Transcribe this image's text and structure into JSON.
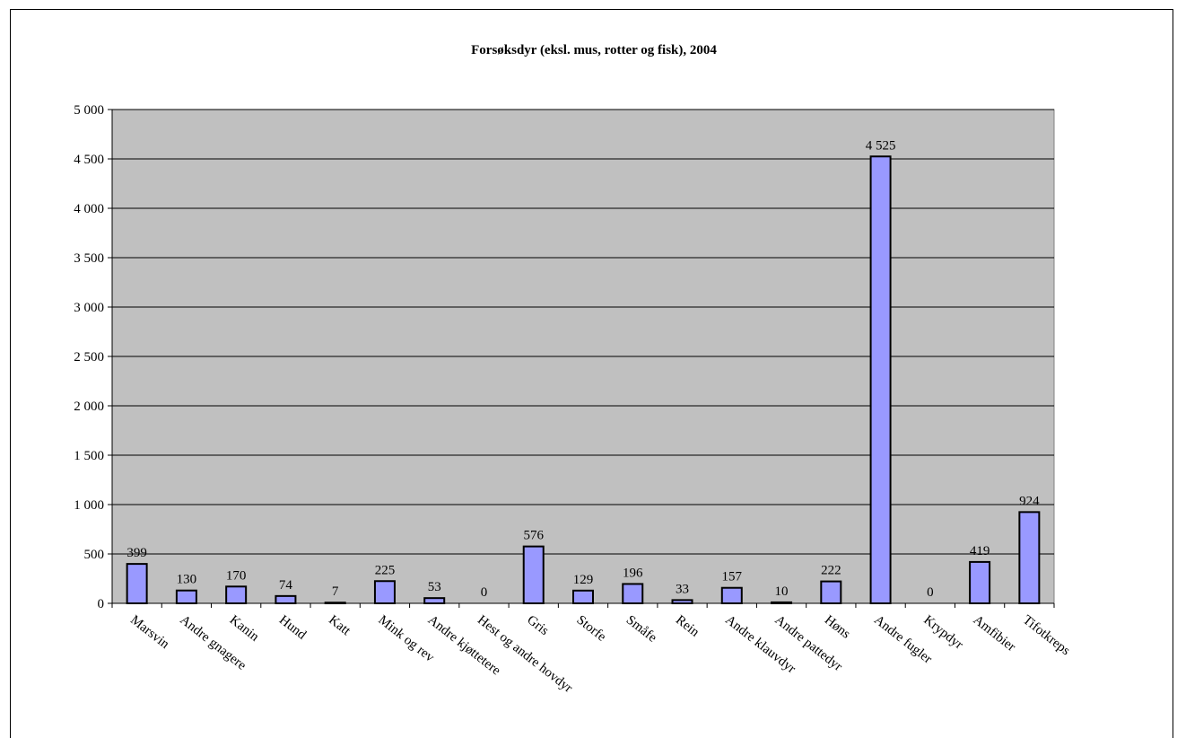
{
  "chart_data": {
    "type": "bar",
    "title": "Forsøksdyr (eksl. mus, rotter og fisk), 2004",
    "categories": [
      "Marsvin",
      "Andre gnagere",
      "Kanin",
      "Hund",
      "Katt",
      "Mink og rev",
      "Andre kjøttetere",
      "Hest og andre hovdyr",
      "Gris",
      "Storfe",
      "Småfe",
      "Rein",
      "Andre klauvdyr",
      "Andre pattedyr",
      "Høns",
      "Andre fugler",
      "Krypdyr",
      "Amfibier",
      "Tifotkreps"
    ],
    "values": [
      399,
      130,
      170,
      74,
      7,
      225,
      53,
      0,
      576,
      129,
      196,
      33,
      157,
      10,
      222,
      4525,
      0,
      419,
      924
    ],
    "value_labels": [
      "399",
      "130",
      "170",
      "74",
      "7",
      "225",
      "53",
      "0",
      "576",
      "129",
      "196",
      "33",
      "157",
      "10",
      "222",
      "4 525",
      "0",
      "419",
      "924"
    ],
    "ylim": [
      0,
      5000
    ],
    "yticks": [
      0,
      500,
      1000,
      1500,
      2000,
      2500,
      3000,
      3500,
      4000,
      4500,
      5000
    ],
    "ytick_labels": [
      "0",
      "500",
      "1 000",
      "1 500",
      "2 000",
      "2 500",
      "3 000",
      "3 500",
      "4 000",
      "4 500",
      "5 000"
    ],
    "xlabel": "",
    "ylabel": "",
    "grid": true,
    "legend": "none",
    "colors": {
      "bar_fill": "#9999ff",
      "bar_stroke": "#000000",
      "plot_background": "#c0c0c0",
      "grid": "#000000"
    }
  }
}
